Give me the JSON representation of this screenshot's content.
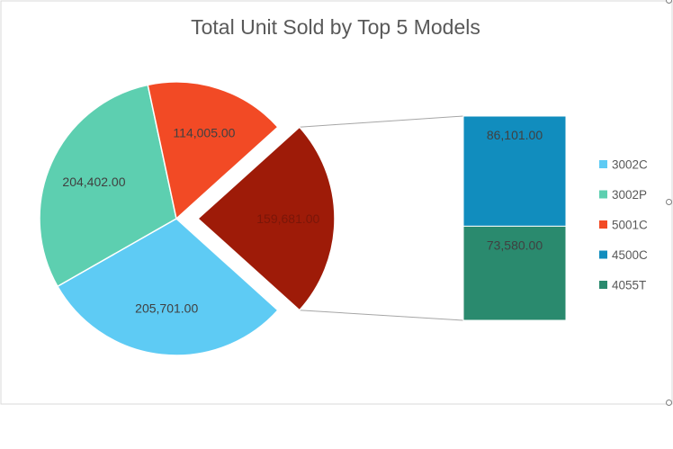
{
  "chart_data": {
    "type": "pie",
    "subtype": "bar-of-pie",
    "title": "Total Unit Sold by Top 5 Models",
    "categories": [
      "3002C",
      "3002P",
      "5001C",
      "4500C",
      "4055T"
    ],
    "values": [
      205701,
      204402,
      114005,
      86101,
      73580
    ],
    "data_labels": [
      "205,701.00",
      "204,402.00",
      "114,005.00",
      "86,101.00",
      "73,580.00"
    ],
    "other_label": "159,681.00",
    "other_value": 159681,
    "secondary_categories": [
      "4500C",
      "4055T"
    ],
    "colors": {
      "3002C": "#5ECBF4",
      "3002P": "#5DCFB0",
      "5001C": "#F24A25",
      "other": "#9E1B08",
      "4500C": "#118DBE",
      "4055T": "#2A8A6E"
    },
    "legend_position": "right"
  }
}
